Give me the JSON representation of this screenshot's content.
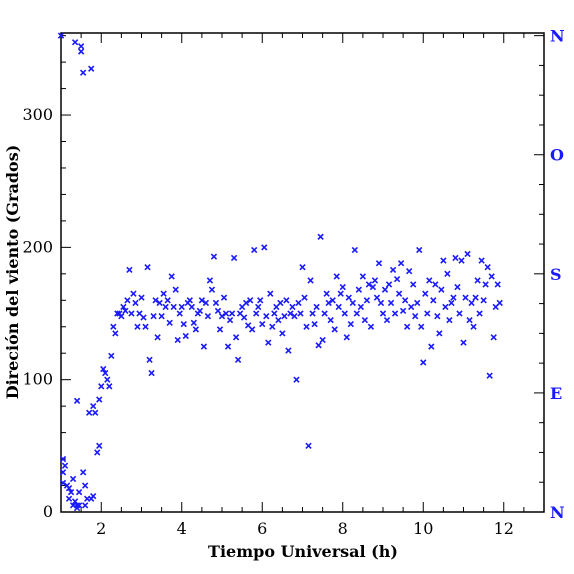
{
  "chart_data": {
    "type": "scatter",
    "xlabel": "Tiempo Universal (h)",
    "ylabel": "Direción del viento (Grados)",
    "xlim": [
      1,
      13
    ],
    "ylim": [
      0,
      362
    ],
    "x_ticks": [
      2,
      4,
      6,
      8,
      10,
      12
    ],
    "x_tick_labels": [
      "2",
      "4",
      "6",
      "8",
      "10",
      "12"
    ],
    "y_ticks": [
      0,
      100,
      200,
      300
    ],
    "y_tick_labels": [
      "0",
      "100",
      "200",
      "300"
    ],
    "right_axis": {
      "ticks": [
        0,
        90,
        180,
        270,
        360
      ],
      "labels": [
        "N",
        "E",
        "S",
        "O",
        "N"
      ]
    },
    "grid": false,
    "marker": "x",
    "marker_color": "#1a1aff",
    "series": [
      {
        "x": [
          1.0,
          1.05,
          1.05,
          1.1,
          1.15,
          1.2,
          1.2,
          1.25,
          1.3,
          1.3,
          1.35,
          1.4,
          1.4,
          1.45,
          1.5,
          1.5,
          1.55,
          1.55,
          1.6,
          1.65,
          1.7,
          1.75,
          1.75,
          1.8,
          1.85,
          1.9,
          1.95,
          1.95,
          2.0,
          2.05,
          2.1,
          2.15,
          2.2,
          2.25,
          2.3,
          2.35,
          2.4,
          1.05,
          1.35,
          1.45,
          1.6,
          1.8,
          1.4
        ],
        "y": [
          360,
          40,
          30,
          35,
          20,
          10,
          18,
          15,
          25,
          5,
          8,
          3,
          84,
          15,
          352,
          348,
          332,
          30,
          5,
          10,
          75,
          335,
          10,
          80,
          75,
          45,
          50,
          85,
          95,
          108,
          105,
          100,
          95,
          118,
          140,
          135,
          150,
          22,
          355,
          5,
          20,
          12,
          5
        ]
      },
      {
        "x": [
          2.45,
          2.5,
          2.55,
          2.6,
          2.65,
          2.7,
          2.75,
          2.8,
          2.85,
          2.9,
          2.95,
          3.0,
          3.05,
          3.1,
          3.15,
          3.2,
          3.25,
          3.3,
          3.35,
          3.4,
          3.45,
          3.5,
          3.55,
          3.6,
          3.65,
          3.7,
          3.75,
          3.8,
          3.85,
          3.9,
          3.95,
          4.0,
          4.05,
          4.1,
          4.15,
          4.2,
          4.25,
          4.3,
          4.35,
          4.4,
          4.45,
          4.5,
          4.55,
          4.6,
          4.65,
          4.7,
          4.75,
          4.8,
          4.85,
          4.9,
          4.95,
          5.0,
          5.05,
          5.1,
          5.15,
          5.2,
          5.25,
          5.3,
          5.35,
          5.4,
          5.45,
          5.5,
          5.55,
          5.6,
          5.65,
          5.7,
          5.75,
          5.8,
          5.85,
          5.9,
          5.95,
          6.0,
          6.05,
          6.1,
          6.15,
          6.2,
          6.25,
          6.3,
          6.35,
          6.4,
          6.45,
          6.5,
          6.55,
          6.6,
          6.65,
          6.7,
          6.75,
          6.8,
          6.85,
          6.9,
          6.95,
          7.0,
          7.05,
          7.1,
          7.15,
          7.2,
          7.25,
          7.3,
          7.35,
          7.4,
          7.45,
          7.5,
          7.55,
          7.6,
          7.65,
          7.7,
          7.75,
          7.8,
          7.85,
          7.9,
          7.95,
          8.0,
          8.05,
          8.1,
          8.15,
          8.2,
          8.25,
          8.3,
          8.35,
          8.4,
          8.45,
          8.5,
          8.55,
          8.6,
          8.65,
          8.7,
          8.75,
          8.8,
          8.85,
          8.9,
          8.95,
          9.0,
          9.05,
          9.1,
          9.15,
          9.2,
          9.25,
          9.3,
          9.35,
          9.4,
          9.45,
          9.5,
          9.55,
          9.6,
          9.65,
          9.7,
          9.75,
          9.8,
          9.85,
          9.9,
          9.95,
          10.0,
          10.05,
          10.1,
          10.15,
          10.2,
          10.25,
          10.3,
          10.35,
          10.4,
          10.45,
          10.5,
          10.55,
          10.6,
          10.65,
          10.7,
          10.75,
          10.8,
          10.85,
          10.9,
          10.95,
          11.0,
          11.05,
          11.1,
          11.15,
          11.2,
          11.25,
          11.3,
          11.35,
          11.4,
          11.45,
          11.5,
          11.55,
          11.6,
          11.65,
          11.7,
          11.75,
          11.8,
          11.85,
          11.9
        ],
        "y": [
          150,
          148,
          155,
          152,
          160,
          183,
          150,
          165,
          158,
          140,
          150,
          162,
          147,
          140,
          185,
          115,
          105,
          148,
          160,
          132,
          158,
          148,
          165,
          155,
          160,
          143,
          178,
          155,
          168,
          130,
          150,
          155,
          142,
          133,
          158,
          160,
          155,
          143,
          138,
          150,
          152,
          160,
          125,
          158,
          148,
          175,
          168,
          193,
          158,
          152,
          138,
          148,
          162,
          150,
          125,
          145,
          150,
          192,
          132,
          115,
          150,
          155,
          147,
          158,
          141,
          160,
          138,
          198,
          150,
          155,
          160,
          142,
          200,
          148,
          128,
          165,
          140,
          150,
          155,
          145,
          158,
          135,
          148,
          160,
          122,
          150,
          155,
          148,
          100,
          158,
          150,
          185,
          162,
          140,
          50,
          175,
          150,
          142,
          155,
          126,
          208,
          130,
          150,
          165,
          158,
          145,
          160,
          138,
          178,
          155,
          165,
          170,
          150,
          132,
          162,
          142,
          158,
          198,
          150,
          168,
          155,
          178,
          145,
          160,
          172,
          140,
          170,
          175,
          162,
          188,
          158,
          150,
          168,
          145,
          172,
          158,
          183,
          150,
          176,
          165,
          188,
          152,
          160,
          140,
          182,
          155,
          172,
          148,
          158,
          198,
          140,
          113,
          165,
          150,
          175,
          125,
          160,
          172,
          148,
          135,
          168,
          190,
          155,
          180,
          145,
          158,
          162,
          192,
          170,
          150,
          190,
          128,
          162,
          195,
          145,
          158,
          140,
          162,
          175,
          150,
          190,
          160,
          172,
          185,
          103,
          178,
          132,
          155,
          172,
          158
        ]
      }
    ]
  }
}
